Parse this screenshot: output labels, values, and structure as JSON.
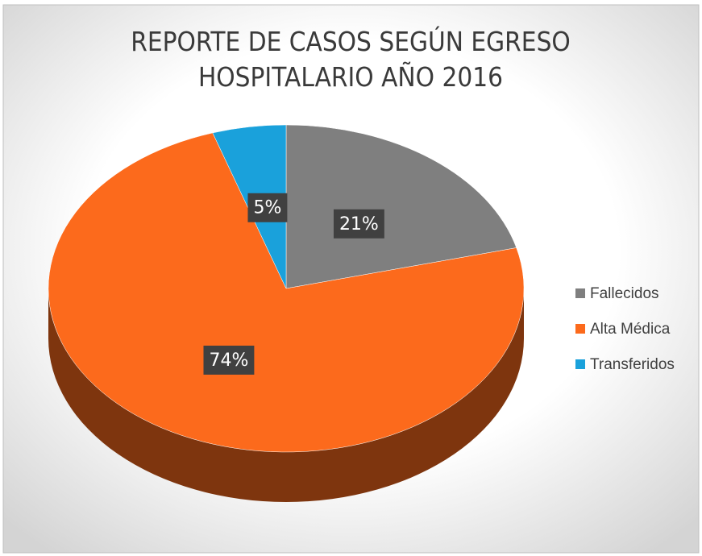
{
  "chart_data": {
    "type": "pie3d",
    "title": "REPORTE DE CASOS SEGÚN EGRESO HOSPITALARIO AÑO 2016",
    "categories": [
      "Fallecidos",
      "Alta Médica",
      "Transferidos"
    ],
    "values": [
      21,
      74,
      5
    ],
    "value_labels": [
      "21%",
      "74%",
      "5%"
    ],
    "colors": [
      "#7f7f7f",
      "#fc6a1c",
      "#1aa1db"
    ],
    "legend": "right"
  }
}
